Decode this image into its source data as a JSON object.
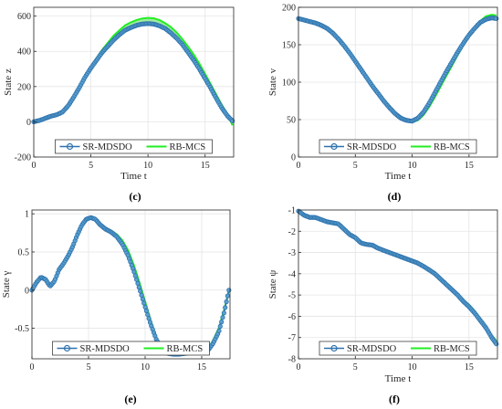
{
  "colors": {
    "srmdsdo": "#2e72ad",
    "srmdsdo_fill": "#5aa0cf",
    "rbmcs": "#22ee22",
    "axis": "#262626",
    "grid": "#e5e5e5",
    "band": "#7fe67f"
  },
  "chart_data": [
    {
      "type": "line",
      "panel": "(c)",
      "xlabel": "Time t",
      "ylabel": "State z",
      "xlim": [
        0,
        17.5
      ],
      "ylim": [
        -200,
        650
      ],
      "xticks": [
        "0",
        "5",
        "10",
        "15"
      ],
      "yticks": [
        "-200",
        "0",
        "200",
        "400",
        "600"
      ],
      "grid": true,
      "legend_position": "bottom",
      "series": [
        {
          "name": "SR-MDSDO",
          "x": [
            0,
            0.5,
            1,
            1.5,
            2,
            2.5,
            3,
            3.5,
            4,
            4.5,
            5,
            5.5,
            6,
            6.5,
            7,
            7.5,
            8,
            8.5,
            9,
            9.5,
            10,
            10.5,
            11,
            11.5,
            12,
            12.5,
            13,
            13.5,
            14,
            14.5,
            15,
            15.5,
            16,
            16.5,
            17,
            17.4
          ],
          "y": [
            0,
            8,
            20,
            32,
            40,
            55,
            90,
            140,
            195,
            255,
            305,
            350,
            395,
            430,
            465,
            495,
            520,
            535,
            548,
            555,
            558,
            555,
            545,
            530,
            505,
            475,
            440,
            395,
            350,
            300,
            245,
            190,
            130,
            75,
            30,
            5
          ]
        },
        {
          "name": "RB-MCS",
          "x": [
            0,
            0.5,
            1,
            1.5,
            2,
            2.5,
            3,
            3.5,
            4,
            4.5,
            5,
            5.5,
            6,
            6.5,
            7,
            7.5,
            8,
            8.5,
            9,
            9.5,
            10,
            10.5,
            11,
            11.5,
            12,
            12.5,
            13,
            13.5,
            14,
            14.5,
            15,
            15.5,
            16,
            16.5,
            17,
            17.4
          ],
          "y": [
            0,
            8,
            20,
            32,
            40,
            55,
            90,
            140,
            195,
            258,
            312,
            362,
            410,
            450,
            490,
            520,
            548,
            565,
            578,
            587,
            590,
            588,
            578,
            560,
            538,
            508,
            470,
            428,
            382,
            330,
            272,
            212,
            152,
            92,
            40,
            -20
          ]
        }
      ]
    },
    {
      "type": "line",
      "panel": "(d)",
      "xlabel": "Time t",
      "ylabel": "State v",
      "xlim": [
        0,
        17.5
      ],
      "ylim": [
        0,
        200
      ],
      "xticks": [
        "0",
        "5",
        "10",
        "15"
      ],
      "yticks": [
        "0",
        "50",
        "100",
        "150",
        "200"
      ],
      "grid": true,
      "legend_position": "bottom",
      "series": [
        {
          "name": "SR-MDSDO",
          "x": [
            0,
            0.5,
            1,
            1.5,
            2,
            2.5,
            3,
            3.5,
            4,
            4.5,
            5,
            5.5,
            6,
            6.5,
            7,
            7.5,
            8,
            8.5,
            9,
            9.5,
            10,
            10.5,
            11,
            11.5,
            12,
            12.5,
            13,
            13.5,
            14,
            14.5,
            15,
            15.5,
            16,
            16.5,
            17,
            17.4
          ],
          "y": [
            185,
            183,
            181,
            179,
            176,
            172,
            166,
            158,
            149,
            139,
            128,
            117,
            106,
            95,
            85,
            75,
            66,
            58,
            52,
            49,
            48,
            52,
            60,
            72,
            86,
            100,
            114,
            127,
            140,
            152,
            163,
            172,
            180,
            184,
            186,
            185
          ]
        },
        {
          "name": "RB-MCS",
          "x": [
            0,
            0.5,
            1,
            1.5,
            2,
            2.5,
            3,
            3.5,
            4,
            4.5,
            5,
            5.5,
            6,
            6.5,
            7,
            7.5,
            8,
            8.5,
            9,
            9.5,
            10,
            10.5,
            11,
            11.5,
            12,
            12.5,
            13,
            13.5,
            14,
            14.5,
            15,
            15.5,
            16,
            16.5,
            17,
            17.4
          ],
          "y": [
            185,
            183,
            181,
            179,
            176,
            172,
            166,
            158,
            149,
            139,
            128,
            117,
            106,
            95,
            85,
            75,
            66,
            58,
            52,
            49,
            47,
            49,
            56,
            67,
            80,
            94,
            108,
            122,
            136,
            149,
            162,
            173,
            182,
            188,
            190,
            189
          ]
        }
      ]
    },
    {
      "type": "line",
      "panel": "(e)",
      "xlabel": "",
      "ylabel": "State γ",
      "xlim": [
        0,
        17.5
      ],
      "ylim": [
        -0.9,
        1.05
      ],
      "xticks": [
        "0",
        "5",
        "10",
        "15"
      ],
      "yticks": [
        "-0.5",
        "0",
        "0.5",
        "1"
      ],
      "grid": true,
      "legend_position": "bottom",
      "series": [
        {
          "name": "SR-MDSDO",
          "x": [
            0,
            0.4,
            0.8,
            1.2,
            1.6,
            2.0,
            2.4,
            2.8,
            3.2,
            3.6,
            4.0,
            4.4,
            4.8,
            5.2,
            5.6,
            6.0,
            6.5,
            7.0,
            7.5,
            8.0,
            8.5,
            9.0,
            9.5,
            10.0,
            10.5,
            11.0,
            11.5,
            12.0,
            12.5,
            13.0,
            13.5,
            14.0,
            14.5,
            15.0,
            15.5,
            16.0,
            16.5,
            17.0,
            17.4
          ],
          "y": [
            0,
            0.1,
            0.17,
            0.14,
            0.05,
            0.12,
            0.27,
            0.35,
            0.45,
            0.57,
            0.72,
            0.85,
            0.93,
            0.95,
            0.93,
            0.86,
            0.8,
            0.76,
            0.7,
            0.6,
            0.45,
            0.25,
            0.02,
            -0.22,
            -0.45,
            -0.65,
            -0.78,
            -0.83,
            -0.84,
            -0.84,
            -0.83,
            -0.82,
            -0.8,
            -0.8,
            -0.8,
            -0.7,
            -0.55,
            -0.28,
            0
          ]
        },
        {
          "name": "RB-MCS",
          "x": [
            0,
            0.4,
            0.8,
            1.2,
            1.6,
            2.0,
            2.4,
            2.8,
            3.2,
            3.6,
            4.0,
            4.4,
            4.8,
            5.2,
            5.6,
            6.0,
            6.5,
            7.0,
            7.5,
            8.0,
            8.5,
            9.0,
            9.5,
            10.0,
            10.5,
            11.0,
            11.5,
            12.0,
            12.5,
            13.0,
            13.5,
            14.0,
            14.5,
            15.0,
            15.5,
            16.0,
            16.5,
            17.0,
            17.4
          ],
          "y": [
            0,
            0.1,
            0.17,
            0.14,
            0.05,
            0.12,
            0.27,
            0.35,
            0.45,
            0.57,
            0.72,
            0.85,
            0.93,
            0.95,
            0.93,
            0.87,
            0.82,
            0.78,
            0.73,
            0.65,
            0.52,
            0.33,
            0.1,
            -0.15,
            -0.4,
            -0.62,
            -0.77,
            -0.83,
            -0.84,
            -0.84,
            -0.83,
            -0.82,
            -0.8,
            -0.8,
            -0.78,
            -0.66,
            -0.5,
            -0.25,
            0
          ]
        }
      ]
    },
    {
      "type": "line",
      "panel": "(f)",
      "xlabel": "Time t",
      "ylabel": "State ψ",
      "xlim": [
        0,
        17.5
      ],
      "ylim": [
        -8,
        -1
      ],
      "xticks": [
        "0",
        "5",
        "10",
        "15"
      ],
      "yticks": [
        "-8",
        "-7",
        "-6",
        "-5",
        "-4",
        "-3",
        "-2",
        "-1"
      ],
      "grid": true,
      "legend_position": "bottom",
      "series": [
        {
          "name": "SR-MDSDO",
          "x": [
            0,
            0.5,
            1,
            1.5,
            2,
            2.5,
            3,
            3.5,
            4,
            4.5,
            5,
            5.5,
            6,
            6.5,
            7,
            7.5,
            8,
            8.5,
            9,
            9.5,
            10,
            10.5,
            11,
            11.5,
            12,
            12.5,
            13,
            13.5,
            14,
            14.5,
            15,
            15.5,
            16,
            16.5,
            17,
            17.4
          ],
          "y": [
            -1.05,
            -1.25,
            -1.35,
            -1.35,
            -1.45,
            -1.55,
            -1.6,
            -1.65,
            -1.9,
            -2.15,
            -2.3,
            -2.55,
            -2.62,
            -2.65,
            -2.8,
            -2.9,
            -3.0,
            -3.1,
            -3.2,
            -3.3,
            -3.4,
            -3.5,
            -3.65,
            -3.82,
            -4.0,
            -4.25,
            -4.5,
            -4.75,
            -5.0,
            -5.3,
            -5.55,
            -5.85,
            -6.2,
            -6.55,
            -7.0,
            -7.3
          ]
        },
        {
          "name": "RB-MCS",
          "x": [
            0,
            0.5,
            1,
            1.5,
            2,
            2.5,
            3,
            3.5,
            4,
            4.5,
            5,
            5.5,
            6,
            6.5,
            7,
            7.5,
            8,
            8.5,
            9,
            9.5,
            10,
            10.5,
            11,
            11.5,
            12,
            12.5,
            13,
            13.5,
            14,
            14.5,
            15,
            15.5,
            16,
            16.5,
            17,
            17.4
          ],
          "y": [
            -1.05,
            -1.25,
            -1.35,
            -1.35,
            -1.45,
            -1.55,
            -1.6,
            -1.65,
            -1.9,
            -2.15,
            -2.3,
            -2.55,
            -2.62,
            -2.65,
            -2.8,
            -2.9,
            -3.0,
            -3.1,
            -3.2,
            -3.3,
            -3.4,
            -3.5,
            -3.65,
            -3.82,
            -4.0,
            -4.25,
            -4.5,
            -4.75,
            -5.0,
            -5.25,
            -5.45,
            -5.75,
            -6.1,
            -6.45,
            -6.9,
            -7.15
          ]
        }
      ]
    }
  ],
  "legend": {
    "series_1": "SR-MDSDO",
    "series_2": "RB-MCS"
  }
}
